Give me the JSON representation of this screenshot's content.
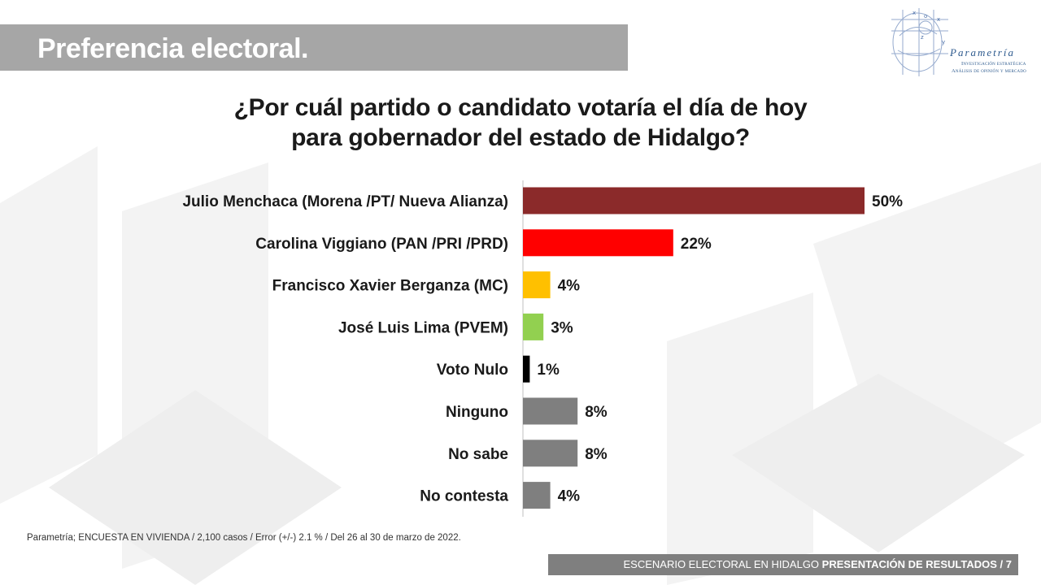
{
  "header": {
    "title": "Preferencia electoral."
  },
  "logo": {
    "name": "Parametría",
    "tagline_1": "Investigación estratégica",
    "tagline_2": "Análisis de opinión y mercado"
  },
  "question": {
    "line1": "¿Por cuál partido o candidato votaría el día de hoy",
    "line2": "para gobernador del estado de Hidalgo?"
  },
  "chart_data": {
    "type": "bar",
    "orientation": "horizontal",
    "categories": [
      "Julio Menchaca (Morena /PT/ Nueva Alianza)",
      "Carolina Viggiano (PAN /PRI /PRD)",
      "Francisco Xavier Berganza (MC)",
      "José Luis Lima (PVEM)",
      "Voto Nulo",
      "Ninguno",
      "No sabe",
      "No contesta"
    ],
    "values": [
      50,
      22,
      4,
      3,
      1,
      8,
      8,
      4
    ],
    "value_labels": [
      "50%",
      "22%",
      "4%",
      "3%",
      "1%",
      "8%",
      "8%",
      "4%"
    ],
    "colors": [
      "#8b2a2a",
      "#ff0000",
      "#ffc000",
      "#92d050",
      "#000000",
      "#7f7f7f",
      "#7f7f7f",
      "#7f7f7f"
    ],
    "unit": "%",
    "xlim": [
      0,
      50
    ],
    "grid": false,
    "legend": "none"
  },
  "source": "Parametría; ENCUESTA EN VIVIENDA / 2,100 casos / Error (+/-) 2.1 % / Del 26 al 30 de marzo de 2022.",
  "footer": {
    "prefix": "ESCENARIO ELECTORAL EN HIDALGO ",
    "bold": "PRESENTACIÓN DE RESULTADOS",
    "page": " / 7"
  }
}
